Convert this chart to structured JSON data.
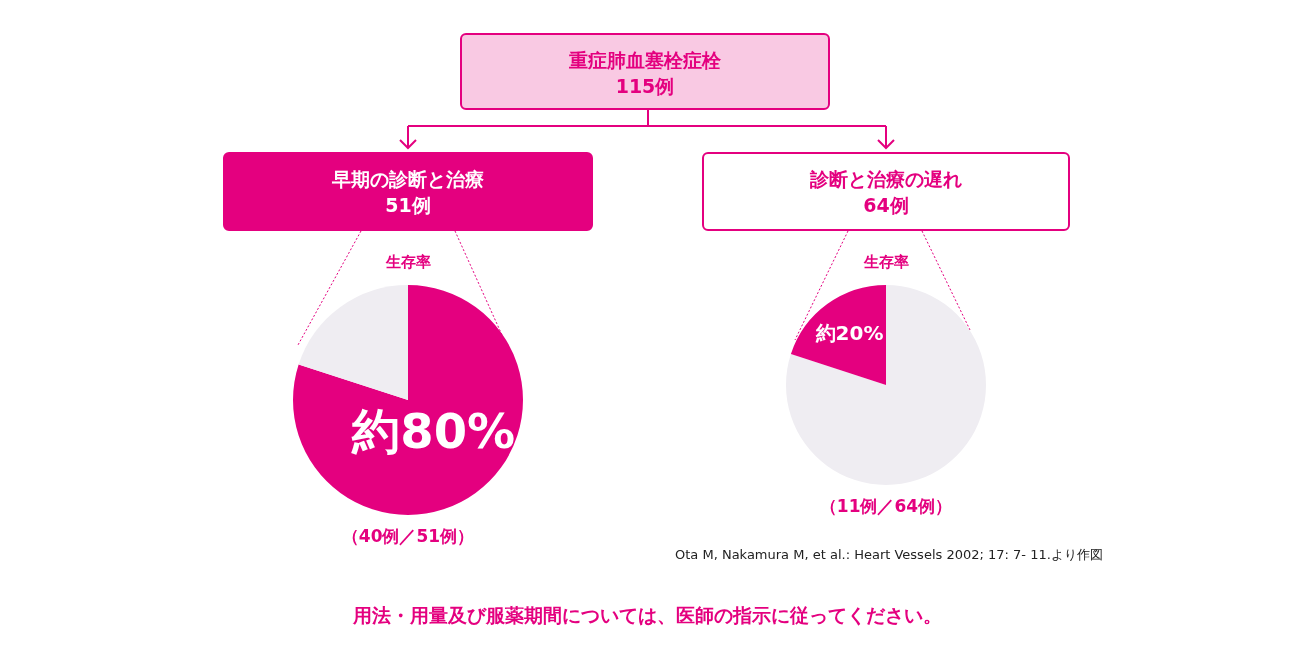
{
  "chart_data": [
    {
      "type": "other",
      "title": "重症肺血塞栓症栓",
      "subtitle": "115例",
      "annotations": [
        "用法・用量及び服薬期間については、医師の指示に従ってください。"
      ]
    },
    {
      "type": "pie",
      "title": "早期の診断と治療",
      "subtitle": "51例",
      "categories": [
        null,
        null
      ],
      "values": [
        80,
        20
      ],
      "colors": [
        "#e4007f",
        "#efedf2"
      ],
      "value_labels": [
        "約80%",
        null
      ],
      "annotations": [
        "生存率",
        "（40例／51例）"
      ]
    },
    {
      "type": "pie",
      "title": "診断と治療の遅れ",
      "subtitle": "64例",
      "categories": [
        null,
        null
      ],
      "values": [
        80,
        20
      ],
      "colors": [
        "#efedf2",
        "#e4007f"
      ],
      "value_labels": [
        null,
        "約20%"
      ],
      "annotations": [
        "生存率",
        "（11例／64例）",
        "Ota M, Nakamura M, et al.: Heart Vessels 2002; 17: 7- 11.より作図"
      ]
    }
  ]
}
